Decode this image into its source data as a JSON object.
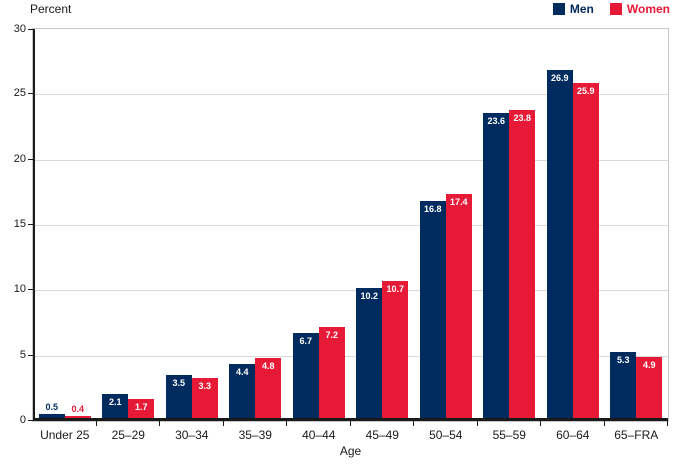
{
  "y_axis_title": "Percent",
  "x_axis_title": "Age",
  "legend": {
    "items": [
      {
        "label": "Men",
        "color": "#002b5e"
      },
      {
        "label": "Women",
        "color": "#e61937"
      }
    ]
  },
  "colors": {
    "men": "#002b5e",
    "women": "#e61937",
    "grid": "#d9d9d9",
    "frame": "#c8c8c8",
    "axis": "#1a1a1a"
  },
  "chart_data": {
    "type": "bar",
    "categories": [
      "Under 25",
      "25–29",
      "30–34",
      "35–39",
      "40–44",
      "45–49",
      "50–54",
      "55–59",
      "60–64",
      "65–FRA"
    ],
    "series": [
      {
        "name": "Men",
        "color": "#002b5e",
        "values": [
          0.5,
          2.1,
          3.5,
          4.4,
          6.7,
          10.2,
          16.8,
          23.6,
          26.9,
          5.3
        ]
      },
      {
        "name": "Women",
        "color": "#e61937",
        "values": [
          0.4,
          1.7,
          3.3,
          4.8,
          7.2,
          10.7,
          17.4,
          23.8,
          25.9,
          4.9
        ]
      }
    ],
    "title": "",
    "xlabel": "Age",
    "ylabel": "Percent",
    "ylim": [
      0,
      30
    ],
    "yticks": [
      0,
      5,
      10,
      15,
      20,
      25,
      30
    ],
    "grid": true,
    "legend_position": "top-right",
    "data_labels": true
  }
}
